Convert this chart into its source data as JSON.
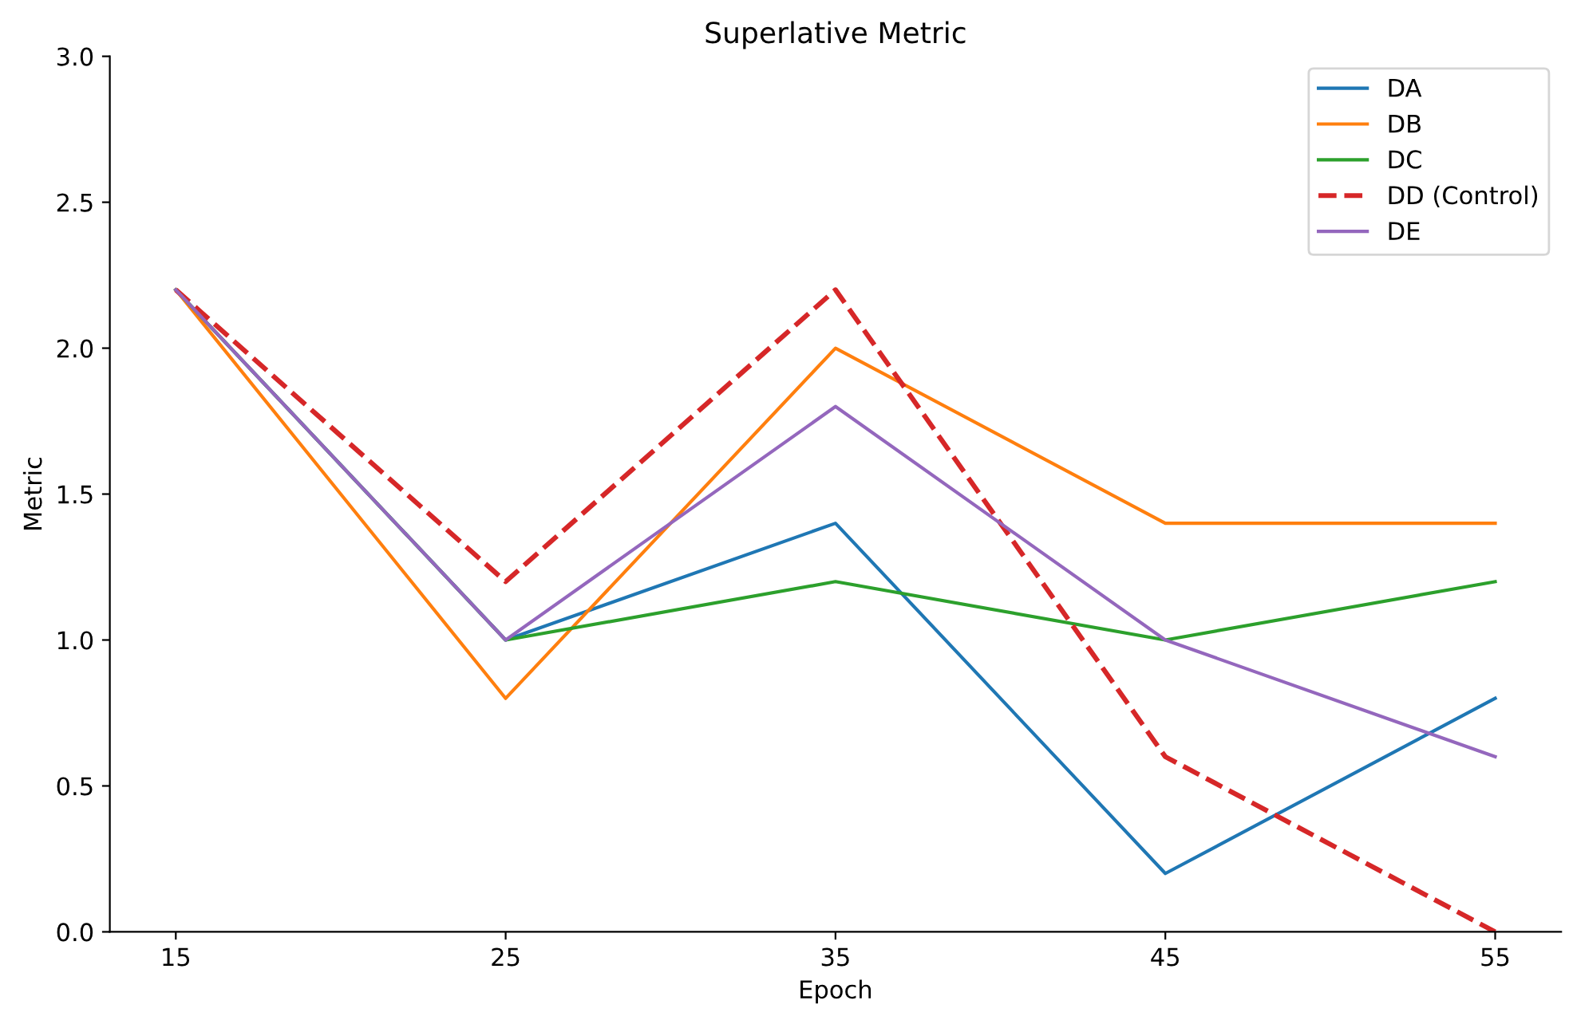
{
  "chart_data": {
    "type": "line",
    "title": "Superlative Metric",
    "xlabel": "Epoch",
    "ylabel": "Metric",
    "x": [
      15,
      25,
      35,
      45,
      55
    ],
    "series": [
      {
        "name": "DA",
        "color": "#1f77b4",
        "values": [
          2.2,
          1.0,
          1.4,
          0.2,
          0.8
        ]
      },
      {
        "name": "DB",
        "color": "#ff7f0e",
        "values": [
          2.2,
          0.8,
          2.0,
          1.4,
          1.4
        ]
      },
      {
        "name": "DC",
        "color": "#2ca02c",
        "values": [
          2.2,
          1.0,
          1.2,
          1.0,
          1.2
        ]
      },
      {
        "name": "DD (Control)",
        "color": "#d62728",
        "line_style": "dashed",
        "values": [
          2.2,
          1.2,
          2.2,
          0.6,
          0.0
        ]
      },
      {
        "name": "DE",
        "color": "#9467bd",
        "values": [
          2.2,
          1.0,
          1.8,
          1.0,
          0.6
        ]
      }
    ],
    "xlim": [
      13,
      57
    ],
    "xticks": [
      15,
      25,
      35,
      45,
      55
    ],
    "ylim": [
      0,
      3
    ],
    "yticks": [
      {
        "value": 0,
        "label": "0.0"
      },
      0.5,
      {
        "value": 1,
        "label": "1.0"
      },
      1.5,
      {
        "value": 2,
        "label": "2.0"
      },
      2.5,
      {
        "value": 3,
        "label": "3.0"
      }
    ],
    "legend": "top right",
    "grid": false,
    "marker": "none",
    "line_style": "solid"
  }
}
